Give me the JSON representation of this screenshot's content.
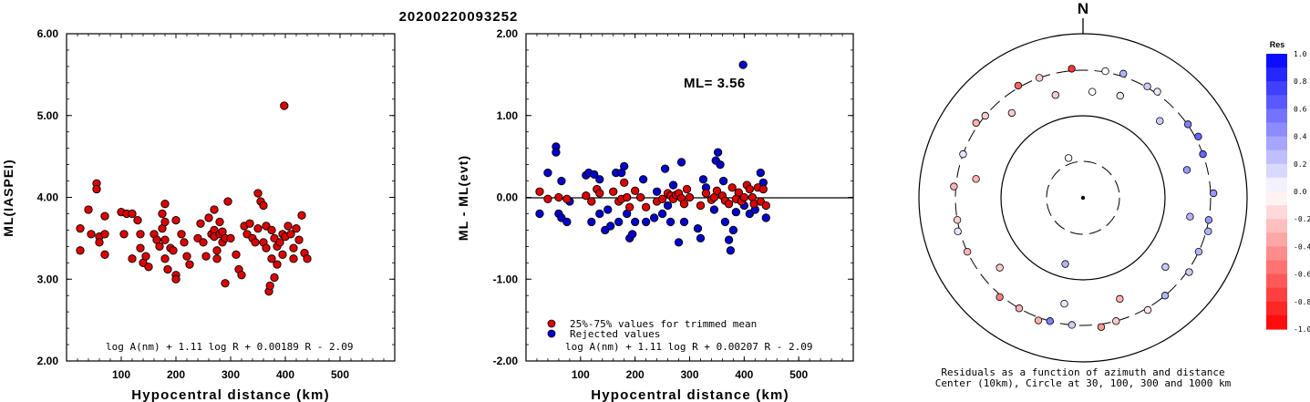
{
  "page_title": "20200220093252",
  "chart_data": [
    {
      "type": "scatter",
      "title": "",
      "xlabel": "Hypocentral distance (km)",
      "ylabel": "ML(IASPEI)",
      "xlim": [
        0,
        600
      ],
      "ylim": [
        2.0,
        6.0
      ],
      "x_ticks": [
        "100",
        "200",
        "300",
        "400",
        "500"
      ],
      "y_ticks": [
        "2.00",
        "3.00",
        "4.00",
        "5.00",
        "6.00"
      ],
      "formula": "log A(nm) + 1.11 log R + 0.00189 R - 2.09",
      "point_color": "#dd0000",
      "points": [
        [
          25,
          3.62
        ],
        [
          25,
          3.35
        ],
        [
          40,
          3.85
        ],
        [
          45,
          3.55
        ],
        [
          55,
          4.17
        ],
        [
          55,
          4.1
        ],
        [
          60,
          3.52
        ],
        [
          60,
          3.45
        ],
        [
          70,
          3.77
        ],
        [
          70,
          3.3
        ],
        [
          70,
          3.55
        ],
        [
          100,
          3.82
        ],
        [
          105,
          3.55
        ],
        [
          110,
          3.8
        ],
        [
          120,
          3.8
        ],
        [
          120,
          3.25
        ],
        [
          130,
          3.72
        ],
        [
          135,
          3.55
        ],
        [
          135,
          3.38
        ],
        [
          140,
          3.2
        ],
        [
          145,
          3.28
        ],
        [
          150,
          3.15
        ],
        [
          160,
          3.55
        ],
        [
          165,
          3.48
        ],
        [
          170,
          3.4
        ],
        [
          175,
          3.62
        ],
        [
          175,
          3.8
        ],
        [
          180,
          3.92
        ],
        [
          180,
          3.7
        ],
        [
          180,
          3.48
        ],
        [
          180,
          3.25
        ],
        [
          185,
          3.12
        ],
        [
          190,
          3.38
        ],
        [
          195,
          3.35
        ],
        [
          200,
          3.72
        ],
        [
          200,
          3.05
        ],
        [
          200,
          3.0
        ],
        [
          210,
          3.55
        ],
        [
          215,
          3.45
        ],
        [
          220,
          3.28
        ],
        [
          225,
          3.18
        ],
        [
          240,
          3.5
        ],
        [
          245,
          3.68
        ],
        [
          250,
          3.45
        ],
        [
          255,
          3.28
        ],
        [
          260,
          3.75
        ],
        [
          265,
          3.55
        ],
        [
          270,
          3.85
        ],
        [
          270,
          3.6
        ],
        [
          270,
          3.52
        ],
        [
          275,
          3.35
        ],
        [
          275,
          3.25
        ],
        [
          280,
          3.7
        ],
        [
          280,
          3.55
        ],
        [
          285,
          3.45
        ],
        [
          285,
          3.58
        ],
        [
          290,
          3.5
        ],
        [
          290,
          2.95
        ],
        [
          295,
          3.95
        ],
        [
          300,
          3.5
        ],
        [
          310,
          3.3
        ],
        [
          315,
          3.12
        ],
        [
          320,
          3.05
        ],
        [
          325,
          3.65
        ],
        [
          330,
          3.55
        ],
        [
          335,
          3.68
        ],
        [
          340,
          3.5
        ],
        [
          345,
          3.45
        ],
        [
          350,
          4.05
        ],
        [
          350,
          3.62
        ],
        [
          355,
          3.95
        ],
        [
          360,
          3.9
        ],
        [
          360,
          3.45
        ],
        [
          365,
          3.65
        ],
        [
          365,
          3.38
        ],
        [
          370,
          2.85
        ],
        [
          372,
          2.92
        ],
        [
          375,
          3.6
        ],
        [
          375,
          3.25
        ],
        [
          380,
          3.5
        ],
        [
          380,
          3.02
        ],
        [
          385,
          3.4
        ],
        [
          385,
          3.18
        ],
        [
          390,
          3.45
        ],
        [
          395,
          3.55
        ],
        [
          395,
          3.3
        ],
        [
          398,
          5.12
        ],
        [
          400,
          3.52
        ],
        [
          405,
          3.65
        ],
        [
          410,
          3.55
        ],
        [
          415,
          3.38
        ],
        [
          415,
          3.25
        ],
        [
          420,
          3.62
        ],
        [
          425,
          3.48
        ],
        [
          430,
          3.78
        ],
        [
          435,
          3.32
        ],
        [
          440,
          3.25
        ]
      ]
    },
    {
      "type": "scatter",
      "title": "",
      "xlabel": "Hypocentral distance (km)",
      "ylabel": "ML - ML(evt)",
      "xlim": [
        0,
        600
      ],
      "ylim": [
        -2.0,
        2.0
      ],
      "x_ticks": [
        "100",
        "200",
        "300",
        "400",
        "500"
      ],
      "y_ticks": [
        "-2.00",
        "-1.00",
        "0.00",
        "1.00",
        "2.00"
      ],
      "annotation": "ML= 3.56",
      "legend": [
        "25%-75% values for trimmed mean",
        "Rejected values"
      ],
      "formula": "log A(nm) + 1.11 log R + 0.00207 R - 2.09",
      "colors": {
        "trimmed": "#dd0000",
        "rejected": "#0000cc"
      },
      "series": [
        {
          "name": "25%-75% values for trimmed mean",
          "points": [
            [
              25,
              0.07
            ],
            [
              40,
              -0.02
            ],
            [
              60,
              0.0
            ],
            [
              75,
              -0.02
            ],
            [
              110,
              0.02
            ],
            [
              120,
              -0.05
            ],
            [
              130,
              0.1
            ],
            [
              135,
              0.05
            ],
            [
              160,
              0.07
            ],
            [
              170,
              -0.05
            ],
            [
              175,
              -0.02
            ],
            [
              180,
              0.18
            ],
            [
              185,
              0.0
            ],
            [
              190,
              -0.12
            ],
            [
              200,
              0.08
            ],
            [
              210,
              0.0
            ],
            [
              220,
              -0.12
            ],
            [
              240,
              -0.05
            ],
            [
              250,
              -0.02
            ],
            [
              260,
              0.05
            ],
            [
              265,
              0.02
            ],
            [
              270,
              -0.02
            ],
            [
              275,
              0.03
            ],
            [
              280,
              0.05
            ],
            [
              285,
              -0.01
            ],
            [
              290,
              -0.08
            ],
            [
              295,
              0.1
            ],
            [
              300,
              0.0
            ],
            [
              320,
              -0.1
            ],
            [
              330,
              0.05
            ],
            [
              340,
              -0.03
            ],
            [
              345,
              0.0
            ],
            [
              350,
              0.08
            ],
            [
              360,
              0.02
            ],
            [
              365,
              -0.04
            ],
            [
              372,
              -0.08
            ],
            [
              378,
              0.12
            ],
            [
              385,
              -0.02
            ],
            [
              390,
              0.06
            ],
            [
              395,
              -0.05
            ],
            [
              400,
              0.0
            ],
            [
              405,
              0.15
            ],
            [
              410,
              0.1
            ],
            [
              415,
              0.0
            ],
            [
              418,
              -0.08
            ],
            [
              425,
              0.12
            ],
            [
              430,
              -0.05
            ],
            [
              435,
              0.1
            ],
            [
              440,
              -0.1
            ]
          ]
        },
        {
          "name": "Rejected values",
          "points": [
            [
              25,
              -0.2
            ],
            [
              40,
              0.3
            ],
            [
              55,
              0.62
            ],
            [
              55,
              0.55
            ],
            [
              60,
              -0.2
            ],
            [
              65,
              0.2
            ],
            [
              65,
              -0.25
            ],
            [
              75,
              -0.3
            ],
            [
              80,
              -0.05
            ],
            [
              110,
              0.27
            ],
            [
              115,
              0.3
            ],
            [
              120,
              -0.3
            ],
            [
              125,
              0.28
            ],
            [
              135,
              0.22
            ],
            [
              135,
              -0.2
            ],
            [
              145,
              -0.4
            ],
            [
              150,
              -0.15
            ],
            [
              155,
              -0.35
            ],
            [
              165,
              0.3
            ],
            [
              170,
              -0.3
            ],
            [
              175,
              0.3
            ],
            [
              180,
              0.38
            ],
            [
              185,
              -0.2
            ],
            [
              190,
              -0.5
            ],
            [
              195,
              -0.45
            ],
            [
              200,
              -0.3
            ],
            [
              215,
              0.22
            ],
            [
              220,
              -0.3
            ],
            [
              235,
              -0.25
            ],
            [
              240,
              0.07
            ],
            [
              250,
              -0.2
            ],
            [
              255,
              0.35
            ],
            [
              260,
              -0.1
            ],
            [
              265,
              -0.3
            ],
            [
              270,
              0.15
            ],
            [
              280,
              -0.55
            ],
            [
              285,
              0.43
            ],
            [
              290,
              -0.3
            ],
            [
              315,
              -0.38
            ],
            [
              320,
              -0.5
            ],
            [
              325,
              0.22
            ],
            [
              330,
              0.12
            ],
            [
              345,
              -0.15
            ],
            [
              348,
              0.45
            ],
            [
              352,
              0.55
            ],
            [
              356,
              0.4
            ],
            [
              362,
              0.2
            ],
            [
              365,
              -0.3
            ],
            [
              372,
              -0.52
            ],
            [
              375,
              -0.65
            ],
            [
              380,
              -0.4
            ],
            [
              385,
              -0.18
            ],
            [
              390,
              0.05
            ],
            [
              398,
              1.62
            ],
            [
              400,
              -0.1
            ],
            [
              410,
              -0.2
            ],
            [
              420,
              -0.15
            ],
            [
              430,
              0.3
            ],
            [
              435,
              0.18
            ],
            [
              440,
              -0.25
            ]
          ]
        }
      ]
    },
    {
      "type": "scatter",
      "title": "N",
      "caption_line1": "Residuals as a function of azimuth and distance",
      "caption_line2": "Center (10km), Circle at 30, 100, 300 and 1000 km",
      "legend_title": "Res",
      "colorbar_ticks": [
        "1.0",
        "0.8",
        "0.6",
        "0.4",
        "0.2",
        "0.0",
        "-0.2",
        "-0.4",
        "-0.6",
        "-0.8",
        "-1.0"
      ],
      "points_azimuth_distance_residual": [
        [
          340,
          35,
          0.0
        ],
        [
          195,
          70,
          0.3
        ],
        [
          5,
          180,
          0.0
        ],
        [
          20,
          190,
          0.1
        ],
        [
          45,
          190,
          0.2
        ],
        [
          75,
          185,
          0.4
        ],
        [
          100,
          190,
          0.3
        ],
        [
          130,
          185,
          0.2
        ],
        [
          160,
          185,
          -0.3
        ],
        [
          190,
          185,
          0.1
        ],
        [
          230,
          190,
          -0.2
        ],
        [
          280,
          190,
          -0.3
        ],
        [
          320,
          200,
          -0.2
        ],
        [
          345,
          180,
          -0.2
        ],
        [
          10,
          310,
          0.0
        ],
        [
          30,
          310,
          0.2
        ],
        [
          55,
          305,
          0.5
        ],
        [
          70,
          300,
          0.6
        ],
        [
          100,
          300,
          0.4
        ],
        [
          115,
          300,
          0.3
        ],
        [
          140,
          300,
          0.3
        ],
        [
          165,
          300,
          -0.2
        ],
        [
          185,
          300,
          0.2
        ],
        [
          195,
          300,
          0.5
        ],
        [
          210,
          300,
          -0.3
        ],
        [
          245,
          300,
          -0.3
        ],
        [
          260,
          300,
          -0.2
        ],
        [
          290,
          300,
          0.1
        ],
        [
          310,
          300,
          -0.2
        ],
        [
          340,
          300,
          -0.2
        ],
        [
          18,
          330,
          0.3
        ],
        [
          35,
          320,
          0.1
        ],
        [
          62,
          330,
          0.6
        ],
        [
          88,
          330,
          0.4
        ],
        [
          105,
          320,
          0.3
        ],
        [
          125,
          320,
          0.2
        ],
        [
          150,
          320,
          -0.1
        ],
        [
          172,
          330,
          -0.4
        ],
        [
          200,
          330,
          -0.3
        ],
        [
          220,
          320,
          -0.5
        ],
        [
          255,
          320,
          0.1
        ],
        [
          275,
          320,
          -0.3
        ],
        [
          305,
          330,
          -0.3
        ],
        [
          330,
          320,
          -0.6
        ],
        [
          355,
          320,
          -0.8
        ]
      ]
    }
  ]
}
